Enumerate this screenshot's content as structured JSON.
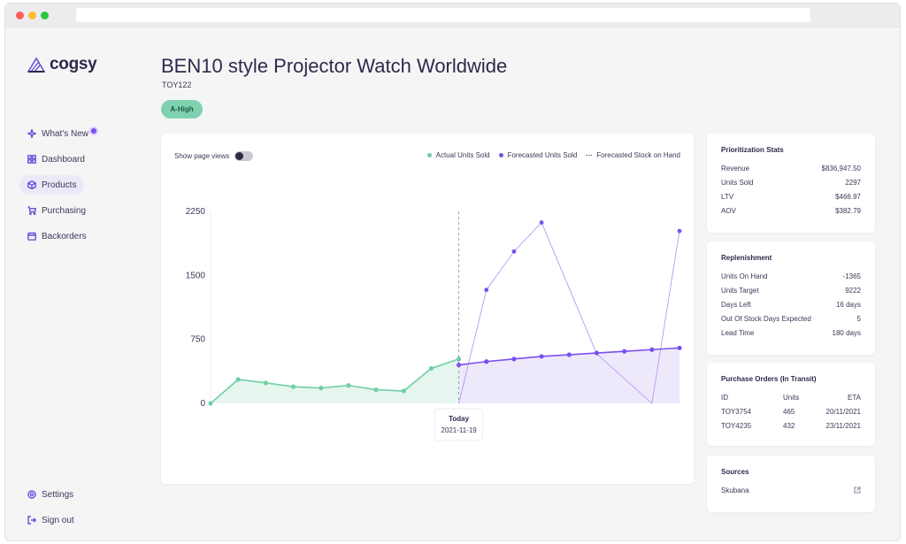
{
  "brand": {
    "name": "cogsy",
    "accent": "#6a4fd8"
  },
  "sidebar": {
    "items": [
      {
        "label": "What's New",
        "icon": "sparkle-icon",
        "badge": true
      },
      {
        "label": "Dashboard",
        "icon": "grid-icon"
      },
      {
        "label": "Products",
        "icon": "box-icon",
        "active": true
      },
      {
        "label": "Purchasing",
        "icon": "cart-icon"
      },
      {
        "label": "Backorders",
        "icon": "calendar-icon"
      }
    ],
    "bottom": [
      {
        "label": "Settings",
        "icon": "gear-icon"
      },
      {
        "label": "Sign out",
        "icon": "sign-out-icon"
      }
    ]
  },
  "header": {
    "title": "BEN10 style Projector Watch Worldwide",
    "sku": "TOY122",
    "priority": "A-High"
  },
  "chart": {
    "toggle_label": "Show page views",
    "legend": [
      {
        "label": "Actual Units Sold",
        "color": "#6fcfa5"
      },
      {
        "label": "Forecasted Units Sold",
        "color": "#7a4ff0"
      },
      {
        "label": "Forecasted Stock on Hand",
        "color": "#3b3858"
      }
    ],
    "today_label": "Today",
    "today_date": "2021-11-19"
  },
  "chart_data": {
    "type": "line",
    "y_ticks": [
      "2250",
      "1500",
      "750",
      "0"
    ],
    "ylim": [
      0,
      2250
    ],
    "today_index": 9,
    "series": [
      {
        "name": "Actual Units Sold",
        "x": [
          0,
          1,
          2,
          3,
          4,
          5,
          6,
          7,
          8,
          9
        ],
        "values": [
          0,
          280,
          240,
          195,
          180,
          210,
          160,
          145,
          410,
          520
        ]
      },
      {
        "name": "Forecasted Units Sold",
        "x": [
          9,
          10,
          11,
          12,
          13,
          14,
          15,
          16,
          17
        ],
        "values": [
          450,
          490,
          520,
          550,
          570,
          590,
          610,
          630,
          650
        ]
      },
      {
        "name": "Forecasted Stock on Hand",
        "x": [
          9,
          10,
          11,
          12,
          14,
          16,
          17
        ],
        "values": [
          0,
          1330,
          1780,
          2120,
          580,
          0,
          2020
        ]
      }
    ]
  },
  "prioritization": {
    "title": "Prioritization Stats",
    "rows": [
      {
        "label": "Revenue",
        "value": "$836,947.50"
      },
      {
        "label": "Units Sold",
        "value": "2297"
      },
      {
        "label": "LTV",
        "value": "$466.97"
      },
      {
        "label": "AOV",
        "value": "$382.79"
      }
    ]
  },
  "replenishment": {
    "title": "Replenishment",
    "rows": [
      {
        "label": "Units On Hand",
        "value": "-1365"
      },
      {
        "label": "Units Target",
        "value": "9222"
      },
      {
        "label": "Days Left",
        "value": "16 days"
      },
      {
        "label": "Out Of Stock Days Expected",
        "value": "5"
      },
      {
        "label": "Lead Time",
        "value": "180 days"
      }
    ]
  },
  "purchase_orders": {
    "title": "Purchase Orders (In Transit)",
    "headers": [
      "ID",
      "Units",
      "ETA"
    ],
    "rows": [
      [
        "TOY3754",
        "465",
        "20/11/2021"
      ],
      [
        "TOY4235",
        "432",
        "23/11/2021"
      ]
    ]
  },
  "sources": {
    "title": "Sources",
    "items": [
      {
        "label": "Skubana",
        "icon": "external-link-icon"
      }
    ]
  }
}
